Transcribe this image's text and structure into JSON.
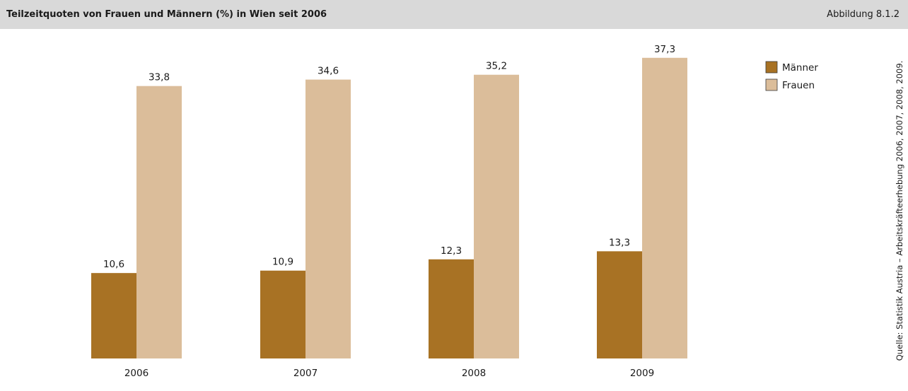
{
  "header": {
    "title": "Teilzeitquoten von Frauen und Männern (%) in Wien seit 2006",
    "figure_number": "Abbildung 8.1.2"
  },
  "source": "Quelle: Statistik Austria – Arbeitskräfteerhebung 2006, 2007, 2008, 2009.",
  "colors": {
    "maenner": "#a87224",
    "frauen": "#dbbd9a",
    "header_bg": "#d9d9d9"
  },
  "chart_data": {
    "type": "bar",
    "title": "Teilzeitquoten von Frauen und Männern (%) in Wien seit 2006",
    "categories": [
      "2006",
      "2007",
      "2008",
      "2009"
    ],
    "series": [
      {
        "name": "Männer",
        "values": [
          10.6,
          10.9,
          12.3,
          13.3
        ],
        "labels": [
          "10,6",
          "10,9",
          "12,3",
          "13,3"
        ]
      },
      {
        "name": "Frauen",
        "values": [
          33.8,
          34.6,
          35.2,
          37.3
        ],
        "labels": [
          "33,8",
          "34,6",
          "35,2",
          "37,3"
        ]
      }
    ],
    "legend_position": "top-right",
    "grid": false
  }
}
